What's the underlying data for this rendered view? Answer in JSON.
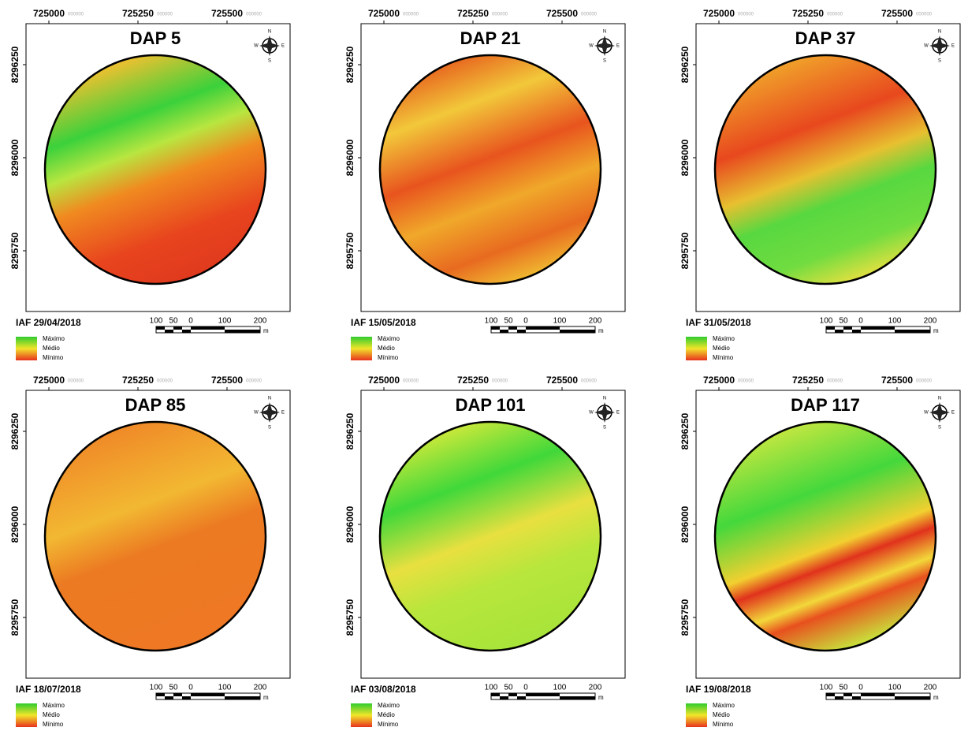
{
  "panels": [
    {
      "title": "DAP 5",
      "date": "IAF 29/04/2018"
    },
    {
      "title": "DAP 21",
      "date": "IAF 15/05/2018"
    },
    {
      "title": "DAP 37",
      "date": "IAF 31/05/2018"
    },
    {
      "title": "DAP 85",
      "date": "IAF 18/07/2018"
    },
    {
      "title": "DAP 101",
      "date": "IAF 03/08/2018"
    },
    {
      "title": "DAP 117",
      "date": "IAF 19/08/2018"
    }
  ],
  "x_labels": [
    "725000",
    "725250",
    "725500"
  ],
  "x_suffix": "000000",
  "y_labels": [
    "8296250",
    "8296000",
    "8295750"
  ],
  "scale_labels": [
    "100",
    "50",
    "0",
    "100",
    "200"
  ],
  "scale_unit": "m",
  "legend": [
    "Máximo",
    "Médio",
    "Mínimo"
  ],
  "compass": [
    "N",
    "S",
    "E",
    "W"
  ]
}
